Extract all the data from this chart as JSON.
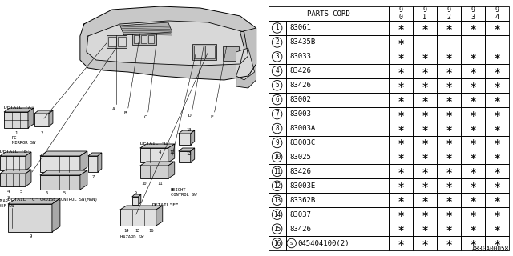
{
  "bg_color": "#ffffff",
  "table_header": "PARTS CORD",
  "col_headers": [
    "9\n0",
    "9\n1",
    "9\n2",
    "9\n3",
    "9\n4"
  ],
  "parts": [
    {
      "num": 1,
      "code": "83061",
      "marks": [
        1,
        1,
        1,
        1,
        1
      ]
    },
    {
      "num": 2,
      "code": "83435B",
      "marks": [
        1,
        0,
        0,
        0,
        0
      ]
    },
    {
      "num": 3,
      "code": "83033",
      "marks": [
        1,
        1,
        1,
        1,
        1
      ]
    },
    {
      "num": 4,
      "code": "83426",
      "marks": [
        1,
        1,
        1,
        1,
        1
      ]
    },
    {
      "num": 5,
      "code": "83426",
      "marks": [
        1,
        1,
        1,
        1,
        1
      ]
    },
    {
      "num": 6,
      "code": "83002",
      "marks": [
        1,
        1,
        1,
        1,
        1
      ]
    },
    {
      "num": 7,
      "code": "83003",
      "marks": [
        1,
        1,
        1,
        1,
        1
      ]
    },
    {
      "num": 8,
      "code": "83003A",
      "marks": [
        1,
        1,
        1,
        1,
        1
      ]
    },
    {
      "num": 9,
      "code": "83003C",
      "marks": [
        1,
        1,
        1,
        1,
        1
      ]
    },
    {
      "num": 10,
      "code": "83025",
      "marks": [
        1,
        1,
        1,
        1,
        1
      ]
    },
    {
      "num": 11,
      "code": "83426",
      "marks": [
        1,
        1,
        1,
        1,
        1
      ]
    },
    {
      "num": 12,
      "code": "83003E",
      "marks": [
        1,
        1,
        1,
        1,
        1
      ]
    },
    {
      "num": 13,
      "code": "83362B",
      "marks": [
        1,
        1,
        1,
        1,
        1
      ]
    },
    {
      "num": 14,
      "code": "83037",
      "marks": [
        1,
        1,
        1,
        1,
        1
      ]
    },
    {
      "num": 15,
      "code": "83426",
      "marks": [
        1,
        1,
        1,
        1,
        1
      ]
    },
    {
      "num": 16,
      "code": "045404100(2)",
      "marks": [
        1,
        1,
        1,
        1,
        1
      ]
    }
  ],
  "footer": "A830A00058",
  "line_color": "#000000",
  "text_color": "#000000",
  "gray_light": "#cccccc",
  "gray_mid": "#aaaaaa",
  "gray_dark": "#888888"
}
